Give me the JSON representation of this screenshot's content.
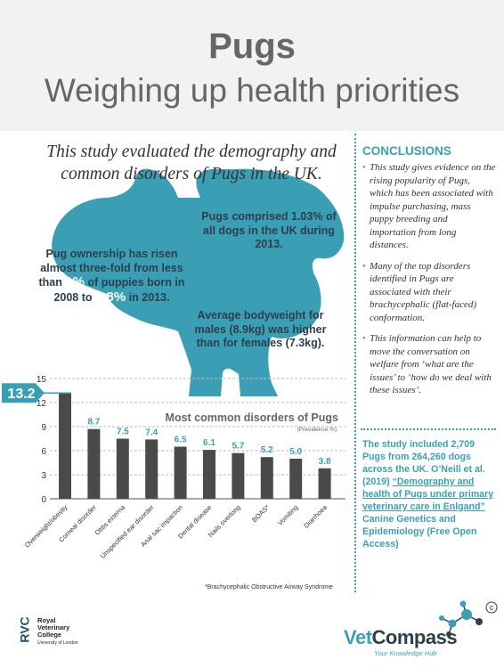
{
  "header": {
    "title": "Pugs",
    "subtitle": "Weighing up health priorities"
  },
  "intro": "This study evaluated the demography and common disorders of Pugs in the UK.",
  "facts": {
    "ownership": {
      "pre": "Pug ownership has risen almost three-fold from less than ",
      "h1": "1%",
      "mid": " of puppies born in 2008 to ",
      "h2": "2.8%",
      "post": " in 2013."
    },
    "comprised": "Pugs comprised 1.03% of all dogs in the UK during 2013.",
    "weight": "Average bodyweight for males (8.9kg) was higher than for females (7.3kg)."
  },
  "conclusions": {
    "title": "CONCLUSIONS",
    "items": [
      "This study gives evidence on the rising popularity of Pugs, which has been associated with impulse purchasing, mass puppy breeding and importation from long distances.",
      "Many of the top disorders identified in Pugs are associated with their brachycephalic (flat-faced) conformation.",
      "This information can help to move the conversation on welfare from ‘what are the issues’ to ‘how do we deal with these issues’."
    ]
  },
  "study": {
    "text": "The study included 2,709 Pugs from 264,260 dogs across the UK. O’Neill et al. (2019) ",
    "ref": "“Demography and health of Pugs under primary veterinary care in Enlgand”",
    "journal": "Canine Genetics and Epidemiology (Free Open Access)"
  },
  "chart_data": {
    "type": "bar",
    "title": "Most common disorders of Pugs",
    "subtitle": "(Prevalence %)",
    "categories": [
      "Overweight/obesity",
      "Corneal disorder",
      "Otitis externa",
      "Unspecified ear disorder",
      "Anal sac impaction",
      "Dental disease",
      "Nails overlong",
      "BOAS*",
      "Vomiting",
      "Diarrhoea"
    ],
    "values": [
      13.2,
      8.7,
      7.5,
      7.4,
      6.5,
      6.1,
      5.7,
      5.2,
      5.0,
      3.8
    ],
    "labels": [
      "13.2",
      "8.7",
      "7.5",
      "7.4",
      "6.5",
      "6.1",
      "5.7",
      "5.2",
      "5.0",
      "3.8"
    ],
    "yticks": [
      "0",
      "3",
      "6",
      "9",
      "12",
      "15"
    ],
    "ylim": [
      0,
      15
    ],
    "grid": true,
    "bar_color": "#4a4a4a",
    "label_color": "#3a9fb5"
  },
  "footnote": "*Brachycephalic Obstructive Airway Syndrome",
  "logos": {
    "rvc": {
      "line1": "Royal",
      "line2": "Veterinary",
      "line3": "College",
      "sub": "University of London",
      "mark": "RVC"
    },
    "vetcompass": {
      "name_a": "Vet",
      "name_b": "Compass",
      "tagline": "Your Knowledge Hub"
    }
  },
  "colors": {
    "accent": "#3a9fb5",
    "dark": "#2d3e4c",
    "bar": "#4a4a4a"
  }
}
